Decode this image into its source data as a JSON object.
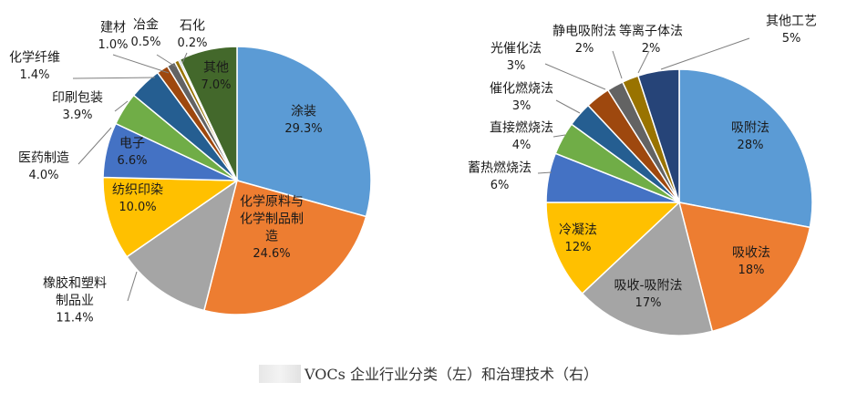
{
  "caption": "VOCs 企业行业分类（左）和治理技术（右）",
  "colors": {
    "blue": "#5b9bd5",
    "orange": "#ed7d31",
    "gray": "#a5a5a5",
    "yellow": "#ffc000",
    "darkblue": "#4472c4",
    "green": "#70ad47",
    "steel": "#255e91",
    "rust": "#9e480e",
    "darkgray": "#636363",
    "olive": "#997300",
    "navy": "#264478",
    "darkgreen": "#43682b"
  },
  "chart_data": [
    {
      "type": "pie",
      "title": "",
      "slices": [
        {
          "label": "涂装",
          "value": 29.3,
          "display": "29.3%",
          "color": "blue"
        },
        {
          "label": "化学原料与化学制品制造",
          "value": 24.6,
          "display": "24.6%",
          "color": "orange"
        },
        {
          "label": "橡胶和塑料制品业",
          "value": 11.4,
          "display": "11.4%",
          "color": "gray"
        },
        {
          "label": "纺织印染",
          "value": 10.0,
          "display": "10.0%",
          "color": "yellow"
        },
        {
          "label": "电子",
          "value": 6.6,
          "display": "6.6%",
          "color": "darkblue"
        },
        {
          "label": "医药制造",
          "value": 4.0,
          "display": "4.0%",
          "color": "green"
        },
        {
          "label": "印刷包装",
          "value": 3.9,
          "display": "3.9%",
          "color": "steel"
        },
        {
          "label": "化学纤维",
          "value": 1.4,
          "display": "1.4%",
          "color": "rust"
        },
        {
          "label": "建材",
          "value": 1.0,
          "display": "1.0%",
          "color": "darkgray"
        },
        {
          "label": "冶金",
          "value": 0.5,
          "display": "0.5%",
          "color": "olive"
        },
        {
          "label": "石化",
          "value": 0.2,
          "display": "0.2%",
          "color": "navy"
        },
        {
          "label": "其他",
          "value": 7.0,
          "display": "7.0%",
          "color": "darkgreen"
        }
      ]
    },
    {
      "type": "pie",
      "title": "",
      "slices": [
        {
          "label": "吸附法",
          "value": 28,
          "display": "28%",
          "color": "blue"
        },
        {
          "label": "吸收法",
          "value": 18,
          "display": "18%",
          "color": "orange"
        },
        {
          "label": "吸收-吸附法",
          "value": 17,
          "display": "17%",
          "color": "gray"
        },
        {
          "label": "冷凝法",
          "value": 12,
          "display": "12%",
          "color": "yellow"
        },
        {
          "label": "蓄热燃烧法",
          "value": 6,
          "display": "6%",
          "color": "darkblue"
        },
        {
          "label": "直接燃烧法",
          "value": 4,
          "display": "4%",
          "color": "green"
        },
        {
          "label": "催化燃烧法",
          "value": 3,
          "display": "3%",
          "color": "steel"
        },
        {
          "label": "光催化法",
          "value": 3,
          "display": "3%",
          "color": "rust"
        },
        {
          "label": "静电吸附法",
          "value": 2,
          "display": "2%",
          "color": "darkgray"
        },
        {
          "label": "等离子体法",
          "value": 2,
          "display": "2%",
          "color": "olive"
        },
        {
          "label": "其他工艺",
          "value": 5,
          "display": "5%",
          "color": "navy"
        }
      ]
    }
  ]
}
